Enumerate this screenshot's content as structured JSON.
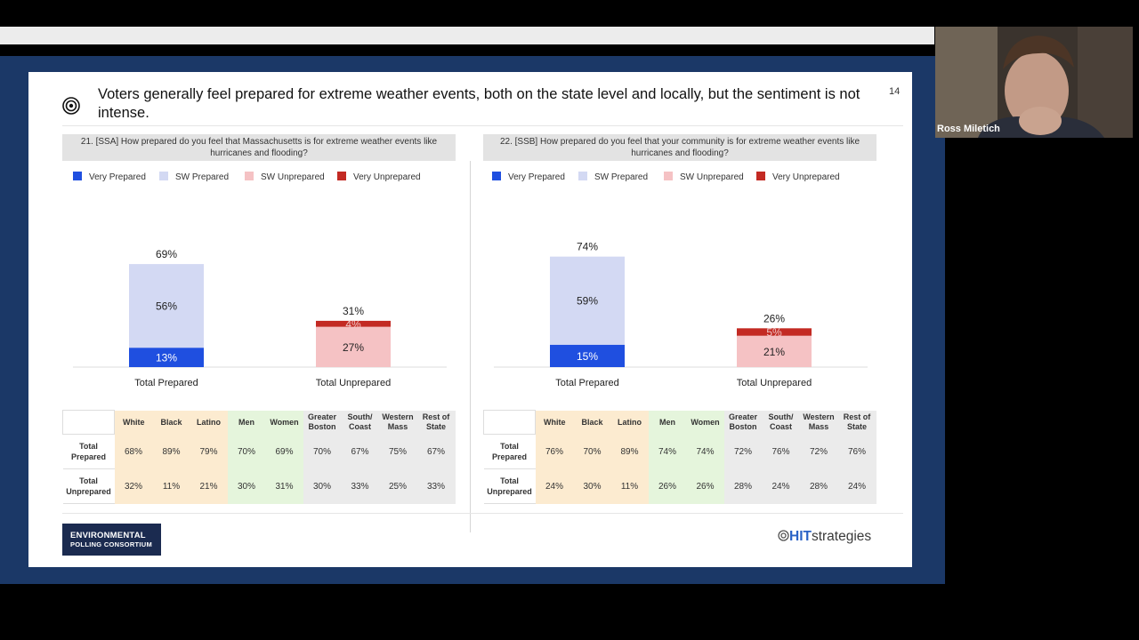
{
  "slide": {
    "title": "Voters generally feel prepared for extreme weather events, both on the state level and locally, but the sentiment is not intense.",
    "page_number": "14"
  },
  "colors": {
    "very_prepared": "#1f4fe0",
    "sw_prepared": "#d3d9f3",
    "sw_unprepared": "#f5c2c4",
    "very_unprepared": "#c32a23",
    "slide_border": "#1b3867"
  },
  "legend": {
    "very_prepared": "Very Prepared",
    "sw_prepared": "SW Prepared",
    "sw_unprepared": "SW Unprepared",
    "very_unprepared": "Very Unprepared"
  },
  "panels": [
    {
      "question": "21. [SSA] How prepared do you feel that Massachusetts is for extreme weather events like hurricanes and flooding?",
      "table": {
        "headers": [
          "White",
          "Black",
          "Latino",
          "Men",
          "Women",
          "Greater Boston",
          "South/ Coast",
          "Western Mass",
          "Rest of State"
        ],
        "rows": [
          {
            "label": "Total Prepared",
            "values": [
              "68%",
              "89%",
              "79%",
              "70%",
              "69%",
              "70%",
              "67%",
              "75%",
              "67%"
            ]
          },
          {
            "label": "Total Unprepared",
            "values": [
              "32%",
              "11%",
              "21%",
              "30%",
              "31%",
              "30%",
              "33%",
              "25%",
              "33%"
            ]
          }
        ]
      }
    },
    {
      "question": "22. [SSB] How prepared do you feel that your community is for extreme weather events like hurricanes and flooding?",
      "table": {
        "headers": [
          "White",
          "Black",
          "Latino",
          "Men",
          "Women",
          "Greater Boston",
          "South/ Coast",
          "Western Mass",
          "Rest of State"
        ],
        "rows": [
          {
            "label": "Total Prepared",
            "values": [
              "76%",
              "70%",
              "89%",
              "74%",
              "74%",
              "72%",
              "76%",
              "72%",
              "76%"
            ]
          },
          {
            "label": "Total Unprepared",
            "values": [
              "24%",
              "30%",
              "11%",
              "26%",
              "26%",
              "28%",
              "24%",
              "28%",
              "24%"
            ]
          }
        ]
      }
    }
  ],
  "chart_data": [
    {
      "type": "bar",
      "stacked": true,
      "categories": [
        "Total Prepared",
        "Total Unprepared"
      ],
      "totals": [
        "69%",
        "31%"
      ],
      "series": [
        {
          "name": "Very Prepared",
          "values": [
            13,
            null
          ]
        },
        {
          "name": "SW Prepared",
          "values": [
            56,
            null
          ]
        },
        {
          "name": "SW Unprepared",
          "values": [
            null,
            27
          ]
        },
        {
          "name": "Very Unprepared",
          "values": [
            null,
            4
          ]
        }
      ],
      "legend_position": "top-left"
    },
    {
      "type": "bar",
      "stacked": true,
      "categories": [
        "Total Prepared",
        "Total Unprepared"
      ],
      "totals": [
        "74%",
        "26%"
      ],
      "series": [
        {
          "name": "Very Prepared",
          "values": [
            15,
            null
          ]
        },
        {
          "name": "SW Prepared",
          "values": [
            59,
            null
          ]
        },
        {
          "name": "SW Unprepared",
          "values": [
            null,
            21
          ]
        },
        {
          "name": "Very Unprepared",
          "values": [
            null,
            5
          ]
        }
      ],
      "legend_position": "top-left"
    }
  ],
  "footer": {
    "logo_line1": "ENVIRONMENTAL",
    "logo_line2": "POLLING CONSORTIUM",
    "brand_hit": "HIT",
    "brand_strategies": "strategies"
  },
  "video": {
    "participant_name": "Ross Miletich"
  }
}
